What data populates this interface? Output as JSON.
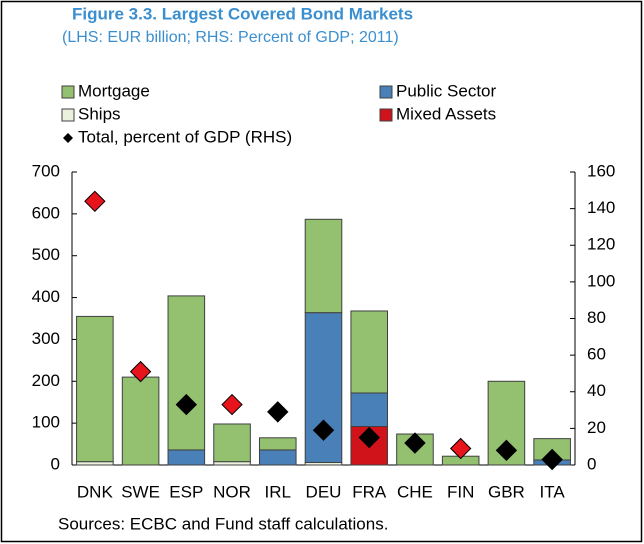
{
  "chart_data": {
    "type": "bar",
    "stacked": true,
    "title": "Figure 3.3. Largest Covered Bond Markets",
    "subtitle": "(LHS: EUR billion; RHS: Percent of GDP; 2011)",
    "note": "Sources: ECBC and Fund staff calculations.",
    "categories": [
      "DNK",
      "SWE",
      "ESP",
      "NOR",
      "IRL",
      "DEU",
      "FRA",
      "CHE",
      "FIN",
      "GBR",
      "ITA"
    ],
    "series": [
      {
        "name": "Ships",
        "color": "#eaf1dd",
        "values": [
          8,
          0,
          0,
          8,
          0,
          6,
          0,
          0,
          0,
          0,
          0
        ]
      },
      {
        "name": "Mixed Assets",
        "color": "#d0121a",
        "values": [
          0,
          0,
          0,
          0,
          0,
          0,
          92,
          0,
          0,
          0,
          0
        ]
      },
      {
        "name": "Public Sector",
        "color": "#4a80b8",
        "values": [
          0,
          0,
          36,
          0,
          36,
          358,
          80,
          0,
          0,
          0,
          12
        ]
      },
      {
        "name": "Mortgage",
        "color": "#93c170",
        "values": [
          347,
          210,
          368,
          90,
          29,
          223,
          196,
          74,
          21,
          200,
          51
        ]
      },
      {
        "name": "Total, percent of GDP (RHS)",
        "type": "scatter",
        "axis": "y2",
        "color": "#000000",
        "point_colors": [
          "#e8141c",
          "#e8141c",
          "#000000",
          "#e8141c",
          "#000000",
          "#000000",
          "#000000",
          "#000000",
          "#e8141c",
          "#000000",
          "#000000"
        ],
        "values": [
          144,
          51,
          33,
          33,
          29,
          19,
          15,
          12,
          9,
          8,
          3
        ]
      }
    ],
    "ylim": [
      0,
      700
    ],
    "yticks": [
      0,
      100,
      200,
      300,
      400,
      500,
      600,
      700
    ],
    "y2lim": [
      0,
      160
    ],
    "y2ticks": [
      0,
      20,
      40,
      60,
      80,
      100,
      120,
      140,
      160
    ],
    "grid": false
  }
}
